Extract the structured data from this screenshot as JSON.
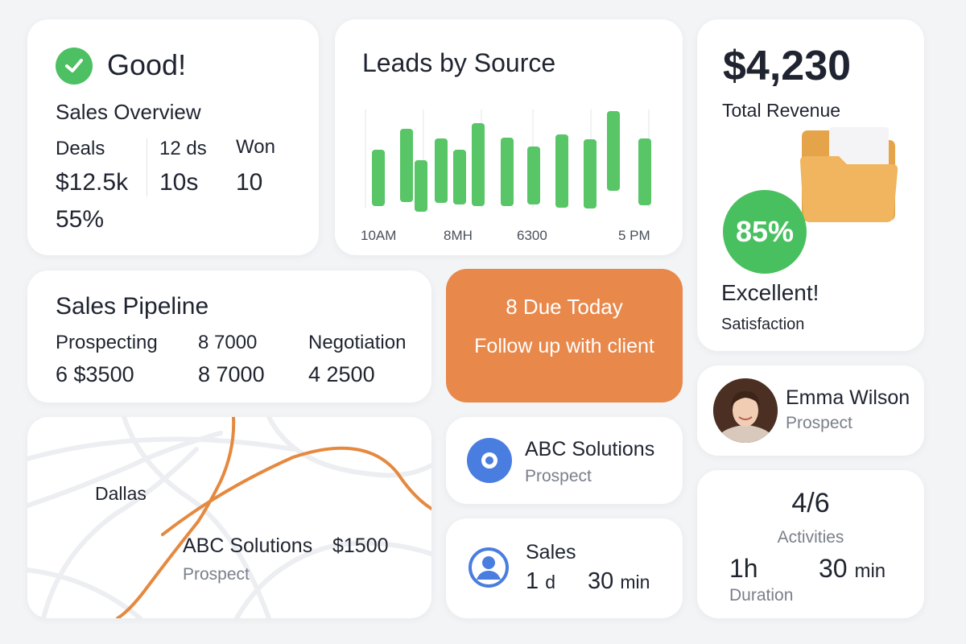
{
  "overview": {
    "status": "Good!",
    "title": "Sales Overview",
    "deals_label": "Deals",
    "deals_value": "$12.5k",
    "percent": "55%",
    "col2_label": "12 ds",
    "col2_value": "10s",
    "won_label": "Won",
    "won_value": "10"
  },
  "leads": {
    "title": "Leads by Source",
    "x_labels": [
      "10AM",
      "8MH",
      "6300",
      "5 PM"
    ],
    "accent": "#58c567"
  },
  "chart_data": {
    "type": "bar",
    "title": "Leads by Source",
    "tick_labels": [
      "10AM",
      "8MH",
      "6300",
      "5 PM"
    ],
    "series": [
      {
        "ranges": [
          [
            186,
            256
          ],
          [
            160,
            251
          ],
          [
            199,
            263
          ],
          [
            172,
            252
          ],
          [
            186,
            254
          ],
          [
            153,
            256
          ],
          [
            171,
            256
          ],
          [
            182,
            254
          ],
          [
            167,
            258
          ],
          [
            173,
            259
          ],
          [
            138,
            237
          ],
          [
            172,
            255
          ]
        ]
      }
    ]
  },
  "revenue": {
    "amount": "$4,230",
    "label": "Total Revenue",
    "satisfaction_percent": "85%",
    "rating": "Excellent!",
    "satisfaction_label": "Satisfaction"
  },
  "pipeline": {
    "title": "Sales Pipeline",
    "stages": [
      {
        "label": "Prospecting",
        "value": "6 $3500"
      },
      {
        "label": "8 7000",
        "value": "8 7000"
      },
      {
        "label": "Negotiation",
        "value": "4 2500"
      }
    ]
  },
  "due": {
    "title": "8 Due Today",
    "task": "Follow up with client",
    "color": "#e8884a"
  },
  "map": {
    "city": "Dallas",
    "company": "ABC Solutions",
    "amount": "$1500",
    "status": "Prospect",
    "route_color": "#e5893f"
  },
  "company_card": {
    "name": "ABC Solutions",
    "status": "Prospect",
    "icon": "target-icon"
  },
  "sales_card": {
    "title": "Sales",
    "days_num": "1",
    "days_unit": "d",
    "minutes_num": "30",
    "minutes_unit": "min",
    "icon": "user-icon"
  },
  "contact": {
    "name": "Emma Wilson",
    "role": "Prospect"
  },
  "activities": {
    "count": "4/6",
    "label": "Activities",
    "hours": "1h",
    "minutes_num": "30",
    "minutes_unit": "min",
    "duration_label": "Duration"
  }
}
